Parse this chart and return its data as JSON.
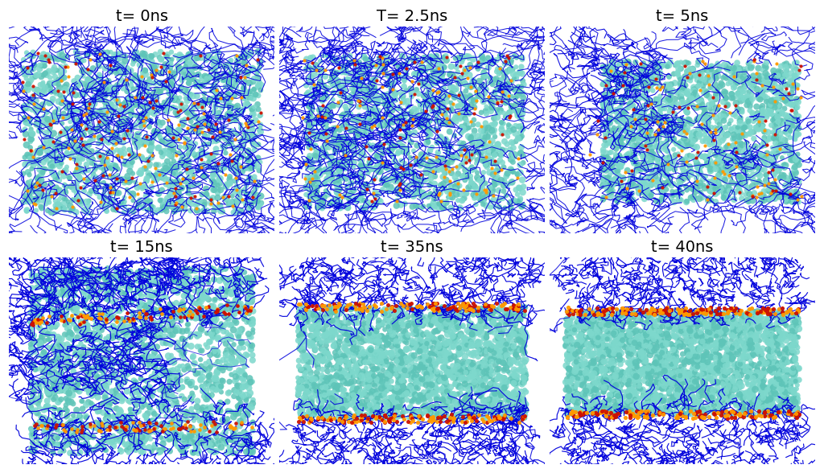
{
  "titles": [
    "t= 0ns",
    "T= 2.5ns",
    "t= 5ns",
    "t= 15ns",
    "t= 35ns",
    "t= 40ns"
  ],
  "title_fontsize": 14,
  "background_color": "#ffffff",
  "cyan_color": "#7DD8CC",
  "cyan_color2": "#5EC4B8",
  "blue_color": "#0000DD",
  "blue_dark": "#1515BB",
  "orange_color": "#FF9900",
  "red_color": "#CC1100",
  "panel_stages": [
    0,
    1,
    2,
    3,
    4,
    5
  ],
  "grid_rows": 2,
  "grid_cols": 3,
  "figsize": [
    10.24,
    5.88
  ],
  "dpi": 100
}
